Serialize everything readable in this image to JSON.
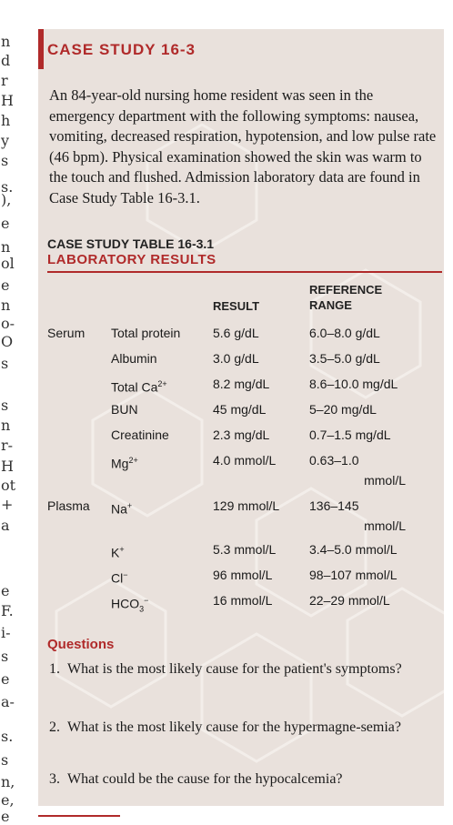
{
  "left_margin_chars": [
    "n",
    "d",
    "r",
    "H",
    "h",
    "y",
    "s",
    "s.",
    "),",
    "e",
    "n",
    "ol",
    "e",
    "n",
    "o-",
    "O",
    "s",
    "s",
    "n",
    "r-",
    "H",
    "ot",
    "+",
    "a",
    "e",
    "F.",
    "i-",
    "s",
    "e",
    "a-",
    "s.",
    "s",
    "n,",
    "e,",
    "e"
  ],
  "header": {
    "title": "CASE STUDY 16-3"
  },
  "intro": "An 84-year-old nursing home resident was seen in the emergency department with the following symptoms: nausea, vomiting, decreased respiration, hypotension, and low pulse rate (46 bpm). Physical examination showed the skin was warm to the touch and flushed. Admission laboratory data are found in Case Study Table 16-3.1.",
  "table": {
    "label": "CASE STUDY TABLE 16-3.1",
    "title": "LABORATORY RESULTS",
    "col_result": "RESULT",
    "col_ref_1": "REFERENCE",
    "col_ref_2": "RANGE",
    "rows": [
      {
        "group": "Serum",
        "test": "Total protein",
        "sup": "",
        "sub": "",
        "sub_sup": "",
        "result": "5.6 g/dL",
        "ref": "6.0–8.0 g/dL",
        "ref2": ""
      },
      {
        "group": "",
        "test": "Albumin",
        "sup": "",
        "sub": "",
        "sub_sup": "",
        "result": "3.0 g/dL",
        "ref": "3.5–5.0 g/dL",
        "ref2": ""
      },
      {
        "group": "",
        "test": "Total Ca",
        "sup": "2+",
        "sub": "",
        "sub_sup": "",
        "result": "8.2 mg/dL",
        "ref": "8.6–10.0 mg/dL",
        "ref2": ""
      },
      {
        "group": "",
        "test": "BUN",
        "sup": "",
        "sub": "",
        "sub_sup": "",
        "result": "45 mg/dL",
        "ref": "5–20 mg/dL",
        "ref2": ""
      },
      {
        "group": "",
        "test": "Creatinine",
        "sup": "",
        "sub": "",
        "sub_sup": "",
        "result": "2.3 mg/dL",
        "ref": "0.7–1.5 mg/dL",
        "ref2": ""
      },
      {
        "group": "",
        "test": "Mg",
        "sup": "2+",
        "sub": "",
        "sub_sup": "",
        "result": "4.0 mmol/L",
        "ref": "0.63–1.0",
        "ref2": "mmol/L"
      },
      {
        "group": "Plasma",
        "test": "Na",
        "sup": "+",
        "sub": "",
        "sub_sup": "",
        "result": "129 mmol/L",
        "ref": "136–145",
        "ref2": "mmol/L"
      },
      {
        "group": "",
        "test": "K",
        "sup": "+",
        "sub": "",
        "sub_sup": "",
        "result": "5.3 mmol/L",
        "ref": "3.4–5.0 mmol/L",
        "ref2": ""
      },
      {
        "group": "",
        "test": "Cl",
        "sup": "−",
        "sub": "",
        "sub_sup": "",
        "result": "96 mmol/L",
        "ref": "98–107 mmol/L",
        "ref2": ""
      },
      {
        "group": "",
        "test": "HCO",
        "sup": "",
        "sub": "3",
        "sub_sup": "−",
        "result": "16 mmol/L",
        "ref": "22–29 mmol/L",
        "ref2": ""
      }
    ]
  },
  "questions": {
    "title": "Questions",
    "items": [
      {
        "num": "1.",
        "text": "What is the most likely cause for the patient's symptoms?"
      },
      {
        "num": "2.",
        "text": "What is the most likely cause for the hypermagne-semia?"
      },
      {
        "num": "3.",
        "text": "What could be the cause for the hypocalcemia?"
      }
    ]
  }
}
